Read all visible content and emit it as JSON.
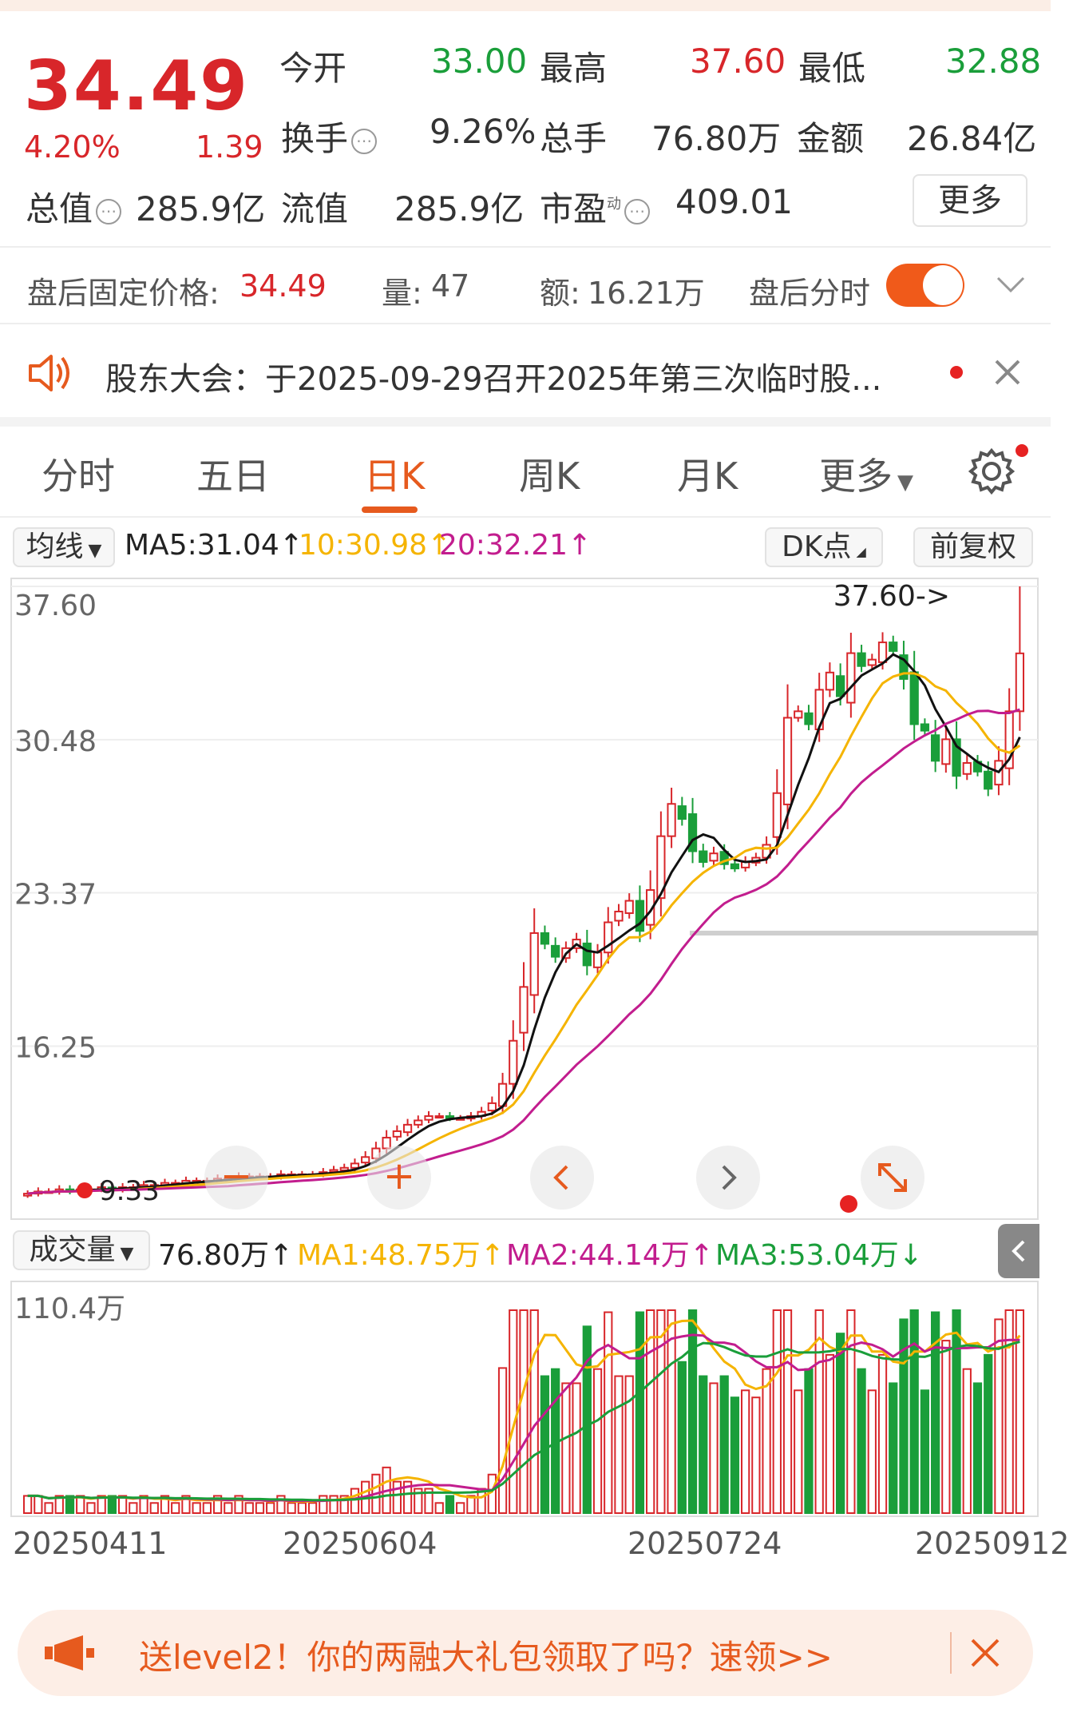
{
  "quote": {
    "price": "34.49",
    "change_pct": "4.20%",
    "change": "1.39",
    "open_label": "今开",
    "open": "33.00",
    "high_label": "最高",
    "high": "37.60",
    "low_label": "最低",
    "low": "32.88",
    "turnover_label": "换手",
    "turnover": "9.26%",
    "volume_label": "总手",
    "volume": "76.80万",
    "amount_label": "金额",
    "amount": "26.84亿",
    "mcap_label": "总值",
    "mcap": "285.9亿",
    "float_label": "流值",
    "float_cap": "285.9亿",
    "pe_label": "市盈",
    "pe_sup": "动",
    "pe": "409.01",
    "more_label": "更多"
  },
  "after_hours": {
    "price_label": "盘后固定价格:",
    "price": "34.49",
    "vol_label": "量:",
    "vol": "47",
    "amt_label": "额:",
    "amt": "16.21万",
    "toggle_label": "盘后分时"
  },
  "notice": {
    "text": "股东大会：于2025-09-29召开2025年第三次临时股..."
  },
  "tabs": [
    {
      "label": "分时"
    },
    {
      "label": "五日"
    },
    {
      "label": "日K"
    },
    {
      "label": "周K"
    },
    {
      "label": "月K"
    },
    {
      "label": "更多"
    }
  ],
  "ma_bar": {
    "selector": "均线",
    "ma5": "MA5:31.04↑",
    "ma10": "10:30.98↑",
    "ma20": "20:32.21↑",
    "dk_label": "DK点",
    "adjust_label": "前复权"
  },
  "price_axis": [
    "37.60",
    "30.48",
    "23.37",
    "16.25"
  ],
  "max_label": "37.60->",
  "min_label": "9.33",
  "vol_bar": {
    "selector": "成交量",
    "vol": "76.80万↑",
    "ma1": "MA1:48.75万↑",
    "ma2": "MA2:44.14万↑",
    "ma3": "MA3:53.04万↓",
    "axis_top": "110.4万"
  },
  "date_axis": [
    "20250411",
    "20250604",
    "20250724",
    "20250912"
  ],
  "banner": {
    "text": "送level2！你的两融大礼包领取了吗？速领>>"
  },
  "colors": {
    "up": "#d8262a",
    "down": "#1a9e3a",
    "accent": "#e65a1e",
    "ma5": "#111111",
    "ma10": "#f5b400",
    "ma20": "#c21d8e"
  },
  "chart_data": {
    "type": "candlestick",
    "ylim": [
      9.33,
      37.6
    ],
    "closes_approx": [
      9.4,
      9.5,
      9.5,
      9.6,
      9.5,
      9.6,
      9.6,
      9.7,
      9.6,
      9.7,
      9.7,
      9.8,
      9.8,
      9.9,
      9.9,
      10.0,
      10.0,
      10.0,
      10.1,
      10.1,
      10.2,
      10.2,
      10.2,
      10.2,
      10.3,
      10.3,
      10.3,
      10.3,
      10.4,
      10.5,
      10.6,
      10.8,
      11.1,
      11.5,
      12.0,
      12.3,
      12.6,
      12.8,
      13.0,
      13.0,
      12.9,
      12.9,
      13.0,
      13.2,
      13.6,
      14.5,
      16.5,
      19.0,
      21.5,
      21.0,
      20.4,
      20.8,
      21.2,
      20.0,
      20.6,
      22.0,
      22.5,
      23.0,
      21.6,
      23.5,
      26.0,
      27.5,
      26.8,
      25.3,
      24.8,
      25.2,
      24.7,
      24.5,
      24.8,
      25.0,
      25.6,
      28.0,
      31.5,
      31.8,
      31.2,
      32.8,
      33.6,
      32.5,
      34.5,
      33.9,
      34.2,
      35.0,
      34.6,
      33.3,
      31.2,
      30.9,
      29.5,
      30.5,
      28.8,
      29.4,
      29.0,
      28.2,
      29.5,
      31.8,
      34.49
    ],
    "vol_axis_max": "110.4万"
  }
}
